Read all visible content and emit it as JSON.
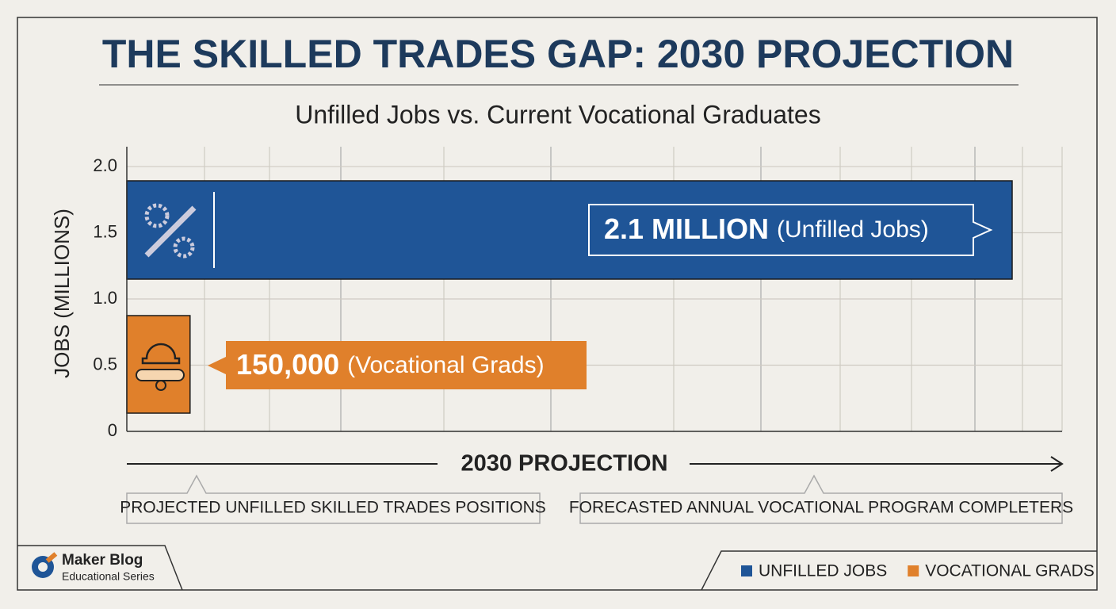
{
  "chart_data": {
    "type": "bar",
    "title": "THE SKILLED TRADES GAP: 2030 PROJECTION",
    "subtitle": "Unfilled Jobs vs. Current Vocational Graduates",
    "ylabel": "JOBS (MILLIONS)",
    "xlabel": "2030 PROJECTION",
    "ylim": [
      0,
      2.15
    ],
    "yticks": [
      0,
      0.5,
      {
        "value": 1,
        "label": "1.0"
      },
      1.5,
      {
        "value": 2,
        "label": "2.0"
      }
    ],
    "grid": true,
    "series": [
      {
        "name": "UNFILLED JOBS",
        "color": "#1f5597",
        "values": [
          2.1
        ],
        "value_labels": [
          "2.1 MILLION"
        ],
        "bar_label": "(Unfilled Jobs)"
      },
      {
        "name": "VOCATIONAL GRADS",
        "color": "#e0802b",
        "values": [
          0.15
        ],
        "value_labels": [
          "150,000"
        ],
        "bar_label": "(Vocational Grads)"
      }
    ],
    "annotations": [
      "PROJECTED UNFILLED SKILLED TRADES POSITIONS",
      "FORECASTED ANNUAL VOCATIONAL PROGRAM COMPLETERS"
    ],
    "legend": "bottom-right"
  },
  "footer": {
    "brand": "Maker Blog",
    "tagline": "Educational Series"
  }
}
